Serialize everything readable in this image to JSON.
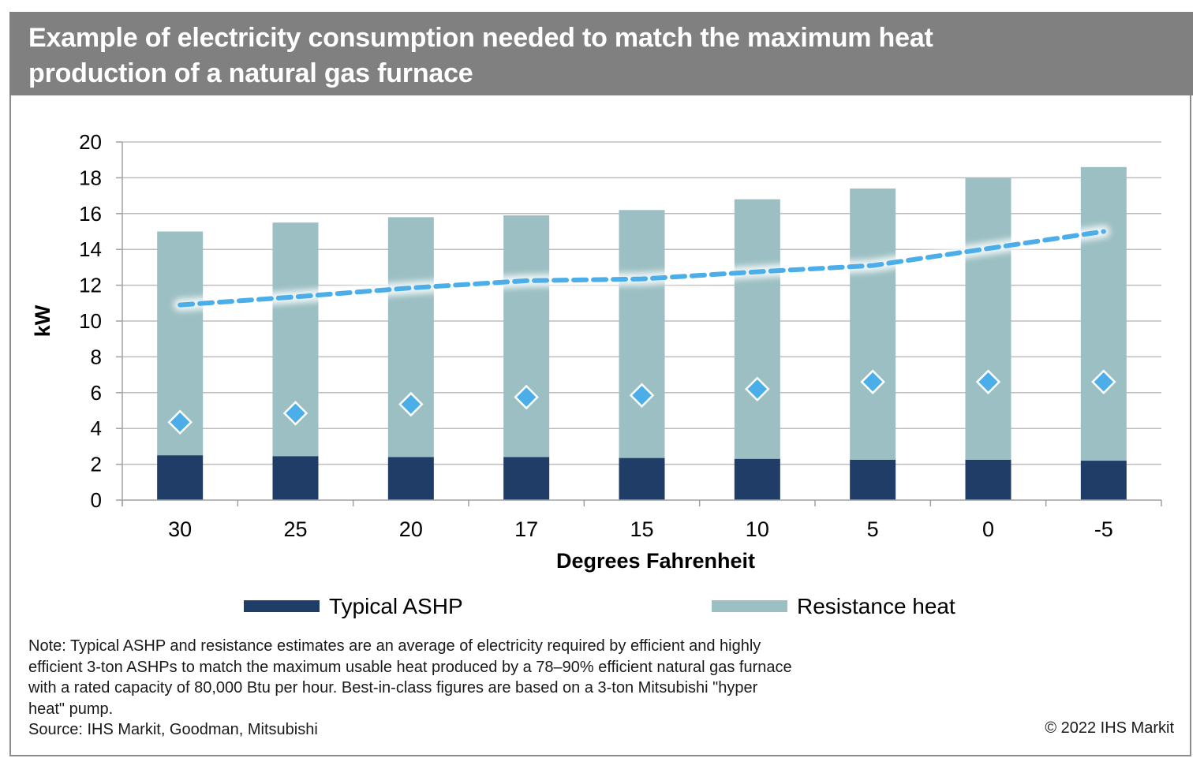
{
  "header": {
    "title_line1": "Example of electricity consumption needed to match the maximum heat",
    "title_line2": "production of a natural gas furnace"
  },
  "colors": {
    "header_bg": "#808080",
    "ashp": "#1f3d66",
    "resistance": "#9bbfc3",
    "best_in_class_marker": "#4baee8",
    "dashed_line": "#4baee8",
    "gridline": "#bdbdbd"
  },
  "chart_data": {
    "type": "bar",
    "stacked": true,
    "title": "Example of electricity consumption needed to match the maximum heat production of a natural gas furnace",
    "xlabel": "Degrees Fahrenheit",
    "ylabel": "kW",
    "ylim": [
      0,
      20
    ],
    "yticks": [
      0,
      2,
      4,
      6,
      8,
      10,
      12,
      14,
      16,
      18,
      20
    ],
    "grid": true,
    "legend_position": "bottom",
    "categories": [
      "30",
      "25",
      "20",
      "17",
      "15",
      "10",
      "5",
      "0",
      "-5"
    ],
    "series": [
      {
        "name": "Typical ASHP",
        "kind": "bar",
        "values": [
          2.5,
          2.45,
          2.4,
          2.4,
          2.35,
          2.3,
          2.25,
          2.25,
          2.2
        ]
      },
      {
        "name": "Resistance heat",
        "kind": "bar",
        "values": [
          12.5,
          13.05,
          13.4,
          13.5,
          13.85,
          14.5,
          15.15,
          15.75,
          16.4
        ]
      },
      {
        "name": "",
        "kind": "scatter-diamond",
        "values": [
          4.35,
          4.85,
          5.35,
          5.75,
          5.85,
          6.2,
          6.6,
          6.6,
          6.6
        ]
      },
      {
        "name": "",
        "kind": "line-dashed",
        "values": [
          10.9,
          11.35,
          11.85,
          12.25,
          12.35,
          12.75,
          13.1,
          14.05,
          15.0
        ]
      }
    ],
    "bar_totals": [
      15.0,
      15.5,
      15.8,
      15.9,
      16.2,
      16.8,
      17.4,
      18.0,
      18.6
    ],
    "legend": [
      {
        "label": "Typical ASHP",
        "series": 0
      },
      {
        "label": "Resistance heat",
        "series": 1
      }
    ]
  },
  "footer": {
    "note_lines": [
      "Note: Typical ASHP and resistance estimates are an average of electricity required by efficient and highly",
      "efficient 3-ton ASHPs to match the maximum usable heat produced by a 78–90% efficient natural gas furnace",
      "with a rated capacity of 80,000 Btu per hour. Best-in-class figures are based on a 3-ton Mitsubishi \"hyper",
      "heat\" pump."
    ],
    "source": "Source: IHS Markit, Goodman, Mitsubishi",
    "copyright": "© 2022 IHS Markit"
  }
}
